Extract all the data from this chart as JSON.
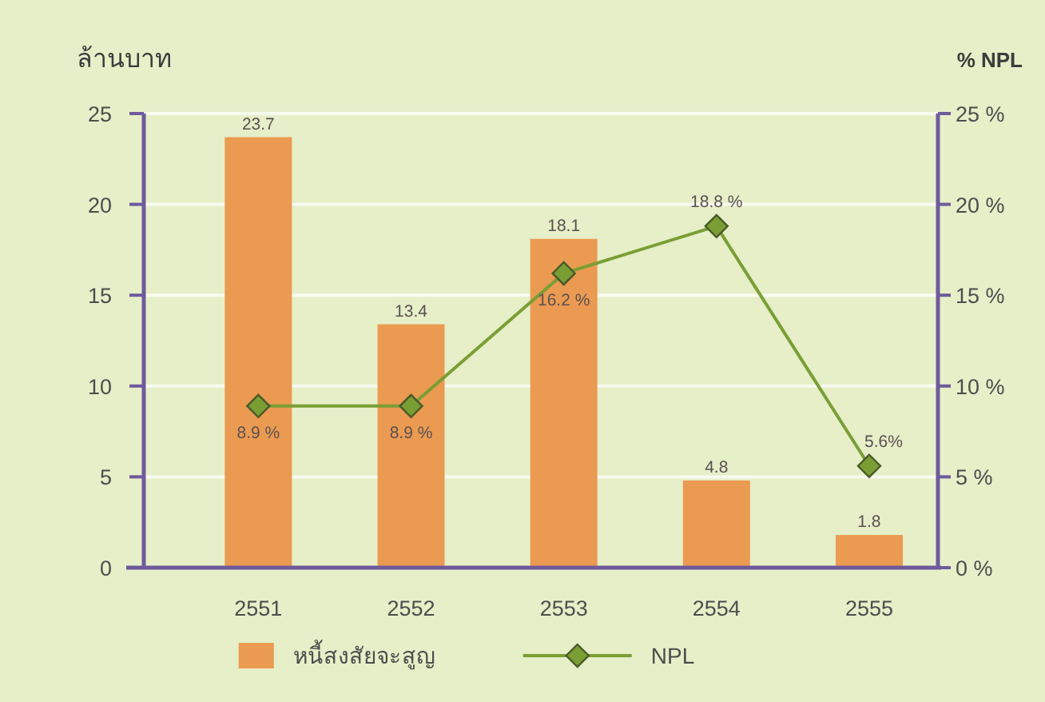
{
  "chart_data": {
    "type": "bar",
    "ylabel": "ล้านบาท",
    "y2label": "% NPL",
    "categories": [
      "2551",
      "2552",
      "2553",
      "2554",
      "2555"
    ],
    "series": [
      {
        "name": "หนี้สงสัยจะสูญ",
        "color": "#eb9a52",
        "values": [
          23.7,
          13.4,
          18.1,
          4.8,
          1.8
        ],
        "value_labels": [
          "23.7",
          "13.4",
          "18.1",
          "4.8",
          "1.8"
        ]
      },
      {
        "name": "NPL",
        "type": "line",
        "axis": "y2",
        "color": "#7a9e34",
        "marker": "diamond",
        "values": [
          8.9,
          8.9,
          16.2,
          18.8,
          5.6
        ],
        "value_labels": [
          "8.9 %",
          "8.9 %",
          "16.2 %",
          "18.8 %",
          "5.6%"
        ]
      }
    ],
    "ylim": [
      0,
      25
    ],
    "yticks": [
      0,
      5,
      10,
      15,
      20,
      25
    ],
    "y2lim": [
      0,
      25
    ],
    "y2ticks": [
      {
        "value": 0,
        "label": "0 %"
      },
      {
        "value": 5,
        "label": "5 %"
      },
      {
        "value": 10,
        "label": "10 %"
      },
      {
        "value": 15,
        "label": "15 %"
      },
      {
        "value": 20,
        "label": "20 %"
      },
      {
        "value": 25,
        "label": "25 %"
      }
    ],
    "grid": "y",
    "legend": "bottom"
  }
}
